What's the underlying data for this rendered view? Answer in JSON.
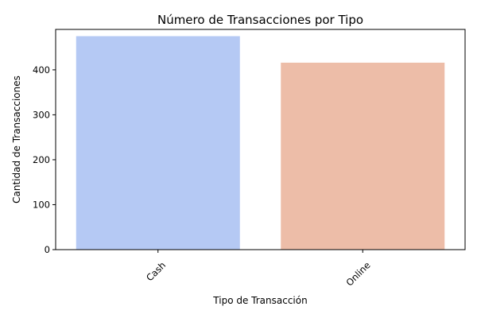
{
  "chart_data": {
    "type": "bar",
    "title": "Número de Transacciones por Tipo",
    "xlabel": "Tipo de Transacción",
    "ylabel": "Cantidad de Transacciones",
    "categories": [
      "Cash",
      "Online"
    ],
    "values": [
      475,
      416
    ],
    "colors": [
      "#b5c9f4",
      "#edbda8"
    ],
    "ylim": [
      0,
      490
    ],
    "yticks": [
      "0",
      "100",
      "200",
      "300",
      "400"
    ],
    "grid": false,
    "xtick_rotation": 45
  }
}
